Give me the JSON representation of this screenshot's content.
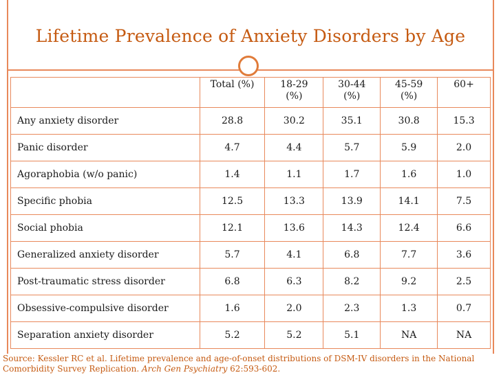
{
  "title": "Lifetime Prevalence of Anxiety Disorders by Age",
  "colors": {
    "accent": "#c55a11",
    "border": "#e8885a",
    "text": "#1a1a1a"
  },
  "table": {
    "headers": [
      {
        "line1": "",
        "line2": ""
      },
      {
        "line1": "Total (%)",
        "line2": ""
      },
      {
        "line1": "18-29",
        "line2": "(%)"
      },
      {
        "line1": "30-44",
        "line2": "(%)"
      },
      {
        "line1": "45-59",
        "line2": "(%)"
      },
      {
        "line1": "60+",
        "line2": ""
      }
    ],
    "rows": [
      {
        "label": "Any anxiety disorder",
        "values": [
          "28.8",
          "30.2",
          "35.1",
          "30.8",
          "15.3"
        ]
      },
      {
        "label": "Panic disorder",
        "values": [
          "4.7",
          "4.4",
          "5.7",
          "5.9",
          "2.0"
        ]
      },
      {
        "label": "Agoraphobia (w/o panic)",
        "values": [
          "1.4",
          "1.1",
          "1.7",
          "1.6",
          "1.0"
        ]
      },
      {
        "label": "Specific phobia",
        "values": [
          "12.5",
          "13.3",
          "13.9",
          "14.1",
          "7.5"
        ]
      },
      {
        "label": "Social phobia",
        "values": [
          "12.1",
          "13.6",
          "14.3",
          "12.4",
          "6.6"
        ]
      },
      {
        "label": "Generalized anxiety disorder",
        "values": [
          "5.7",
          "4.1",
          "6.8",
          "7.7",
          "3.6"
        ]
      },
      {
        "label": "Post-traumatic stress disorder",
        "values": [
          "6.8",
          "6.3",
          "8.2",
          "9.2",
          "2.5"
        ]
      },
      {
        "label": "Obsessive-compulsive disorder",
        "values": [
          "1.6",
          "2.0",
          "2.3",
          "1.3",
          "0.7"
        ]
      },
      {
        "label": "Separation anxiety disorder",
        "values": [
          "5.2",
          "5.2",
          "5.1",
          "NA",
          "NA"
        ]
      }
    ]
  },
  "source": {
    "prefix": "Source: Kessler RC et al. Lifetime prevalence and age-of-onset distributions of DSM-IV disorders in the National Comorbidity Survey Replication. ",
    "journal": "Arch Gen Psychiatry",
    "suffix": " 62:593-602."
  }
}
